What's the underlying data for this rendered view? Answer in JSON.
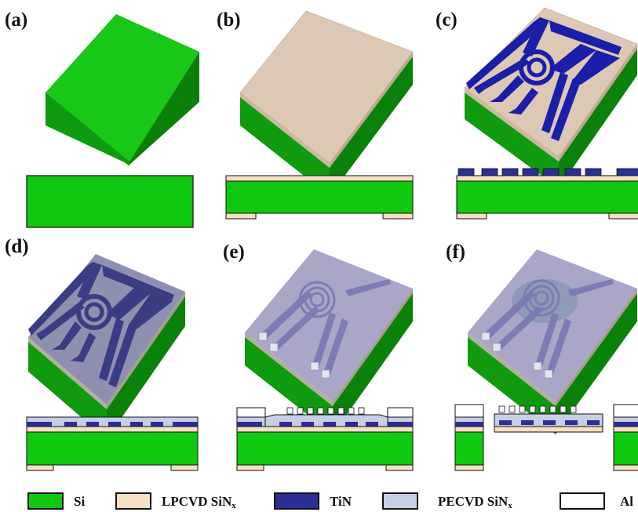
{
  "panels": [
    {
      "id": "a",
      "label": "(a)"
    },
    {
      "id": "b",
      "label": "(b)"
    },
    {
      "id": "c",
      "label": "(c)"
    },
    {
      "id": "d",
      "label": "(d)"
    },
    {
      "id": "e",
      "label": "(e)"
    },
    {
      "id": "f",
      "label": "(f)"
    }
  ],
  "legend": [
    {
      "key": "si",
      "label": "Si",
      "sub": "",
      "color": "#10c810"
    },
    {
      "key": "lpcvd",
      "label": "LPCVD SiN",
      "sub": "x",
      "color": "#f4e0c2"
    },
    {
      "key": "tin",
      "label": "TiN",
      "sub": "",
      "color": "#2b2e94"
    },
    {
      "key": "pecvd",
      "label": "PECVD SiN",
      "sub": "x",
      "color": "#c7cfe6"
    },
    {
      "key": "al",
      "label": "Al",
      "sub": "",
      "color": "#ffffff"
    }
  ],
  "colors": {
    "si_top": "#17c817",
    "si_left": "#0f9a0f",
    "si_right": "#0a820a",
    "lpcvd_top": "#dcc8b4",
    "tin": "#1a1ea8",
    "tin_dark": "#3a3d82",
    "pecvd_overlay": "#a9a6c8",
    "stroke": "#111111"
  }
}
